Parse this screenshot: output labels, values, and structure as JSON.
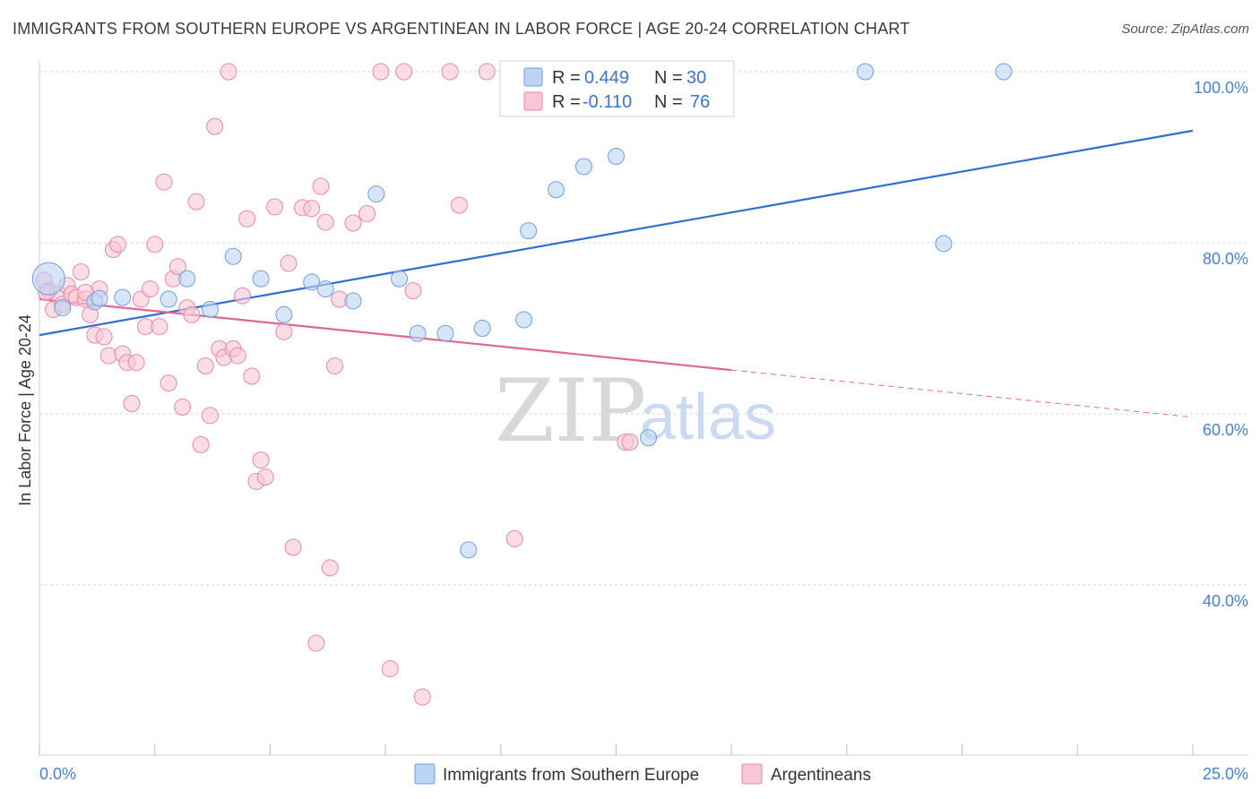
{
  "header": {
    "title": "IMMIGRANTS FROM SOUTHERN EUROPE VS ARGENTINEAN IN LABOR FORCE | AGE 20-24 CORRELATION CHART",
    "source": "Source: ZipAtlas.com"
  },
  "watermark": {
    "zip": "ZIP",
    "atlas": "atlas"
  },
  "legend_box": {
    "rows": [
      {
        "r_label": "R = ",
        "r_value": "0.449",
        "n_label": "N = ",
        "n_value": "30"
      },
      {
        "r_label": "R = ",
        "r_value": "-0.110",
        "n_label": "N = ",
        "n_value": "76"
      }
    ]
  },
  "colors": {
    "blue_fill": "#bcd4f3",
    "blue_stroke": "#6e9fe0",
    "blue_line": "#2f6fcf",
    "pink_fill": "#f8c6d6",
    "pink_stroke": "#e888a8",
    "pink_line": "#e0688f",
    "grid": "#d6d6d6",
    "tick_text": "#4a7fd4"
  },
  "chart_data": {
    "type": "scatter",
    "title": "IMMIGRANTS FROM SOUTHERN EUROPE VS ARGENTINEAN IN LABOR FORCE | AGE 20-24 CORRELATION CHART",
    "xlabel": "",
    "ylabel": "In Labor Force | Age 20-24",
    "xlim": [
      0,
      25
    ],
    "ylim": [
      20,
      104
    ],
    "x_tick_labels": [
      "0.0%",
      "25.0%"
    ],
    "y_ticks": [
      40,
      60,
      80,
      100
    ],
    "y_tick_labels": [
      "40.0%",
      "60.0%",
      "80.0%",
      "100.0%"
    ],
    "grid": "horizontal dashed",
    "legend_position": "top-center",
    "series": [
      {
        "name": "Immigrants from Southern Europe",
        "color": "#6e9fe0",
        "r": 0.449,
        "n": 30,
        "trend": {
          "x": [
            0,
            25
          ],
          "y": [
            69.2,
            93.1
          ],
          "dashed_from": null
        },
        "points": [
          [
            0.2,
            75.8
          ],
          [
            0.5,
            72.4
          ],
          [
            1.2,
            73.1
          ],
          [
            1.8,
            73.6
          ],
          [
            2.8,
            73.4
          ],
          [
            3.2,
            75.8
          ],
          [
            3.7,
            72.2
          ],
          [
            4.2,
            78.4
          ],
          [
            4.8,
            75.8
          ],
          [
            5.3,
            71.6
          ],
          [
            5.9,
            75.4
          ],
          [
            6.2,
            74.6
          ],
          [
            6.8,
            73.2
          ],
          [
            7.3,
            85.7
          ],
          [
            7.8,
            75.8
          ],
          [
            8.2,
            69.4
          ],
          [
            8.8,
            69.4
          ],
          [
            9.6,
            70.0
          ],
          [
            10.5,
            71.0
          ],
          [
            10.6,
            81.4
          ],
          [
            11.2,
            86.2
          ],
          [
            11.8,
            88.9
          ],
          [
            12.5,
            90.1
          ],
          [
            13.2,
            57.2
          ],
          [
            9.3,
            44.1
          ],
          [
            17.9,
            100.0
          ],
          [
            20.9,
            100.0
          ],
          [
            19.6,
            79.9
          ],
          [
            14.1,
            100.0
          ],
          [
            1.3,
            73.5
          ]
        ],
        "sizes": [
          18,
          9,
          9,
          9,
          9,
          9,
          9,
          9,
          9,
          9,
          9,
          9,
          9,
          9,
          9,
          9,
          9,
          9,
          9,
          9,
          9,
          9,
          9,
          9,
          9,
          9,
          9,
          9,
          9,
          9
        ]
      },
      {
        "name": "Argentineans",
        "color": "#e888a8",
        "r": -0.11,
        "n": 76,
        "trend": {
          "x": [
            0,
            25
          ],
          "y": [
            73.4,
            59.6
          ],
          "dashed_from": 15.0
        },
        "points": [
          [
            0.1,
            75.6
          ],
          [
            0.2,
            74.4
          ],
          [
            0.3,
            72.2
          ],
          [
            0.4,
            74.0
          ],
          [
            0.5,
            72.8
          ],
          [
            0.6,
            75.0
          ],
          [
            0.7,
            74.0
          ],
          [
            0.8,
            73.6
          ],
          [
            0.9,
            76.6
          ],
          [
            1.0,
            73.4
          ],
          [
            1.1,
            71.6
          ],
          [
            1.2,
            69.2
          ],
          [
            1.3,
            74.6
          ],
          [
            1.4,
            69.0
          ],
          [
            1.5,
            66.8
          ],
          [
            1.6,
            79.2
          ],
          [
            1.7,
            79.8
          ],
          [
            1.8,
            67.0
          ],
          [
            1.9,
            66.0
          ],
          [
            2.0,
            61.2
          ],
          [
            2.1,
            66.0
          ],
          [
            2.2,
            73.4
          ],
          [
            2.3,
            70.2
          ],
          [
            2.4,
            74.6
          ],
          [
            2.5,
            79.8
          ],
          [
            2.6,
            70.2
          ],
          [
            2.7,
            87.1
          ],
          [
            2.8,
            63.6
          ],
          [
            2.9,
            75.8
          ],
          [
            3.0,
            77.2
          ],
          [
            3.1,
            60.8
          ],
          [
            3.2,
            72.4
          ],
          [
            3.3,
            71.6
          ],
          [
            3.4,
            84.8
          ],
          [
            3.5,
            56.4
          ],
          [
            3.6,
            65.6
          ],
          [
            3.7,
            59.8
          ],
          [
            3.8,
            93.6
          ],
          [
            3.9,
            67.6
          ],
          [
            4.0,
            66.6
          ],
          [
            4.1,
            100.0
          ],
          [
            4.2,
            67.6
          ],
          [
            4.3,
            66.8
          ],
          [
            4.4,
            73.8
          ],
          [
            4.5,
            82.8
          ],
          [
            4.6,
            64.4
          ],
          [
            4.7,
            52.1
          ],
          [
            4.8,
            54.6
          ],
          [
            4.9,
            52.6
          ],
          [
            5.1,
            84.2
          ],
          [
            5.3,
            69.6
          ],
          [
            5.4,
            77.6
          ],
          [
            5.5,
            44.4
          ],
          [
            5.7,
            84.1
          ],
          [
            5.9,
            84.0
          ],
          [
            6.0,
            33.2
          ],
          [
            6.1,
            86.6
          ],
          [
            6.2,
            82.4
          ],
          [
            6.3,
            42.0
          ],
          [
            6.4,
            65.6
          ],
          [
            6.5,
            73.4
          ],
          [
            6.8,
            82.3
          ],
          [
            7.1,
            83.4
          ],
          [
            7.4,
            100.0
          ],
          [
            7.6,
            30.2
          ],
          [
            7.9,
            100.0
          ],
          [
            8.1,
            74.4
          ],
          [
            8.3,
            26.9
          ],
          [
            8.9,
            100.0
          ],
          [
            9.1,
            84.4
          ],
          [
            9.7,
            100.0
          ],
          [
            10.3,
            45.4
          ],
          [
            12.7,
            56.7
          ],
          [
            12.8,
            56.7
          ],
          [
            0.15,
            74.2
          ],
          [
            1.0,
            74.2
          ]
        ],
        "sizes": [
          9,
          9,
          9,
          9,
          9,
          9,
          9,
          9,
          9,
          9,
          9,
          9,
          9,
          9,
          9,
          9,
          9,
          9,
          9,
          9,
          9,
          9,
          9,
          9,
          9,
          9,
          9,
          9,
          9,
          9,
          9,
          9,
          9,
          9,
          9,
          9,
          9,
          9,
          9,
          9,
          9,
          9,
          9,
          9,
          9,
          9,
          9,
          9,
          9,
          9,
          9,
          9,
          9,
          9,
          9,
          9,
          9,
          9,
          9,
          9,
          9,
          9,
          9,
          9,
          9,
          9,
          9,
          9,
          9,
          9,
          9,
          9,
          9,
          9,
          9,
          9
        ]
      }
    ]
  }
}
